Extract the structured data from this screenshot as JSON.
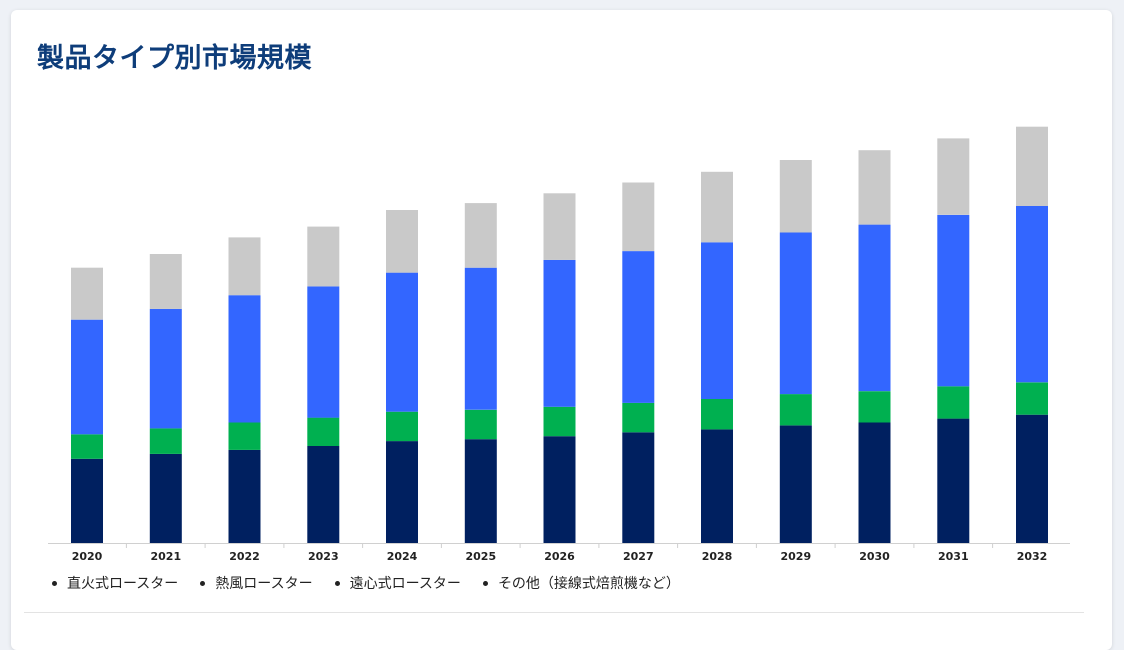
{
  "page": {
    "title": "製品タイプ別市場規模"
  },
  "legend": {
    "items": [
      "直火式ロースター",
      "熱風ロースター",
      "遠心式ロースター",
      "その他（接線式焙煎機など）"
    ]
  },
  "chart_data": {
    "type": "bar",
    "stacked": true,
    "title": "製品タイプ別市場規模",
    "xlabel": "",
    "ylabel": "",
    "ylim": [
      0,
      440
    ],
    "grid": false,
    "legend_position": "bottom",
    "categories": [
      "2020",
      "2021",
      "2022",
      "2023",
      "2024",
      "2025",
      "2026",
      "2027",
      "2028",
      "2029",
      "2030",
      "2031",
      "2032"
    ],
    "series": [
      {
        "name": "直火式ロースター",
        "color": "#002060",
        "values": [
          86,
          91,
          95,
          99,
          104,
          106,
          109,
          113,
          116,
          120,
          123,
          127,
          131
        ]
      },
      {
        "name": "熱風ロースター",
        "color": "#00b050",
        "values": [
          25,
          26,
          28,
          29,
          30,
          30,
          30,
          30,
          31,
          32,
          32,
          33,
          33
        ]
      },
      {
        "name": "遠心式ロースター",
        "color": "#3366ff",
        "values": [
          117,
          122,
          130,
          134,
          142,
          145,
          150,
          155,
          160,
          165,
          170,
          175,
          180
        ]
      },
      {
        "name": "その他（接線式焙煎機など）",
        "color": "#c9c9c9",
        "values": [
          53,
          56,
          59,
          61,
          64,
          66,
          68,
          70,
          72,
          74,
          76,
          78,
          81
        ]
      }
    ]
  }
}
